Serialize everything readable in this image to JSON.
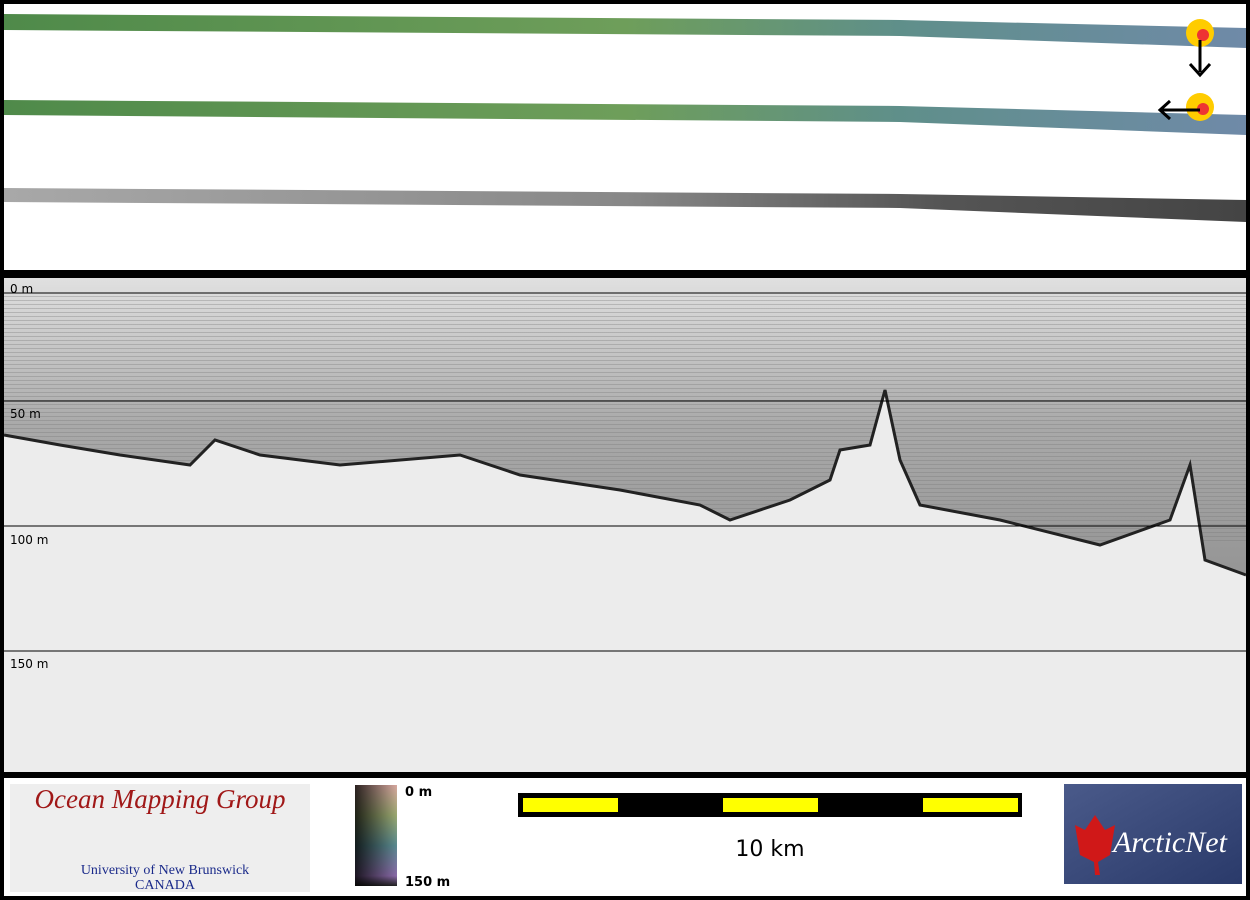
{
  "profile": {
    "depth_labels": [
      "0 m",
      "50 m",
      "100 m",
      "150 m"
    ]
  },
  "footer": {
    "logo_left": {
      "title": "Ocean Mapping Group",
      "line1": "University of New Brunswick",
      "line2": "CANADA"
    },
    "colorbar": {
      "top": "0 m",
      "bottom": "150 m"
    },
    "scale_bar": {
      "label": "10 km"
    },
    "logo_right": {
      "title": "ArcticNet"
    }
  }
}
